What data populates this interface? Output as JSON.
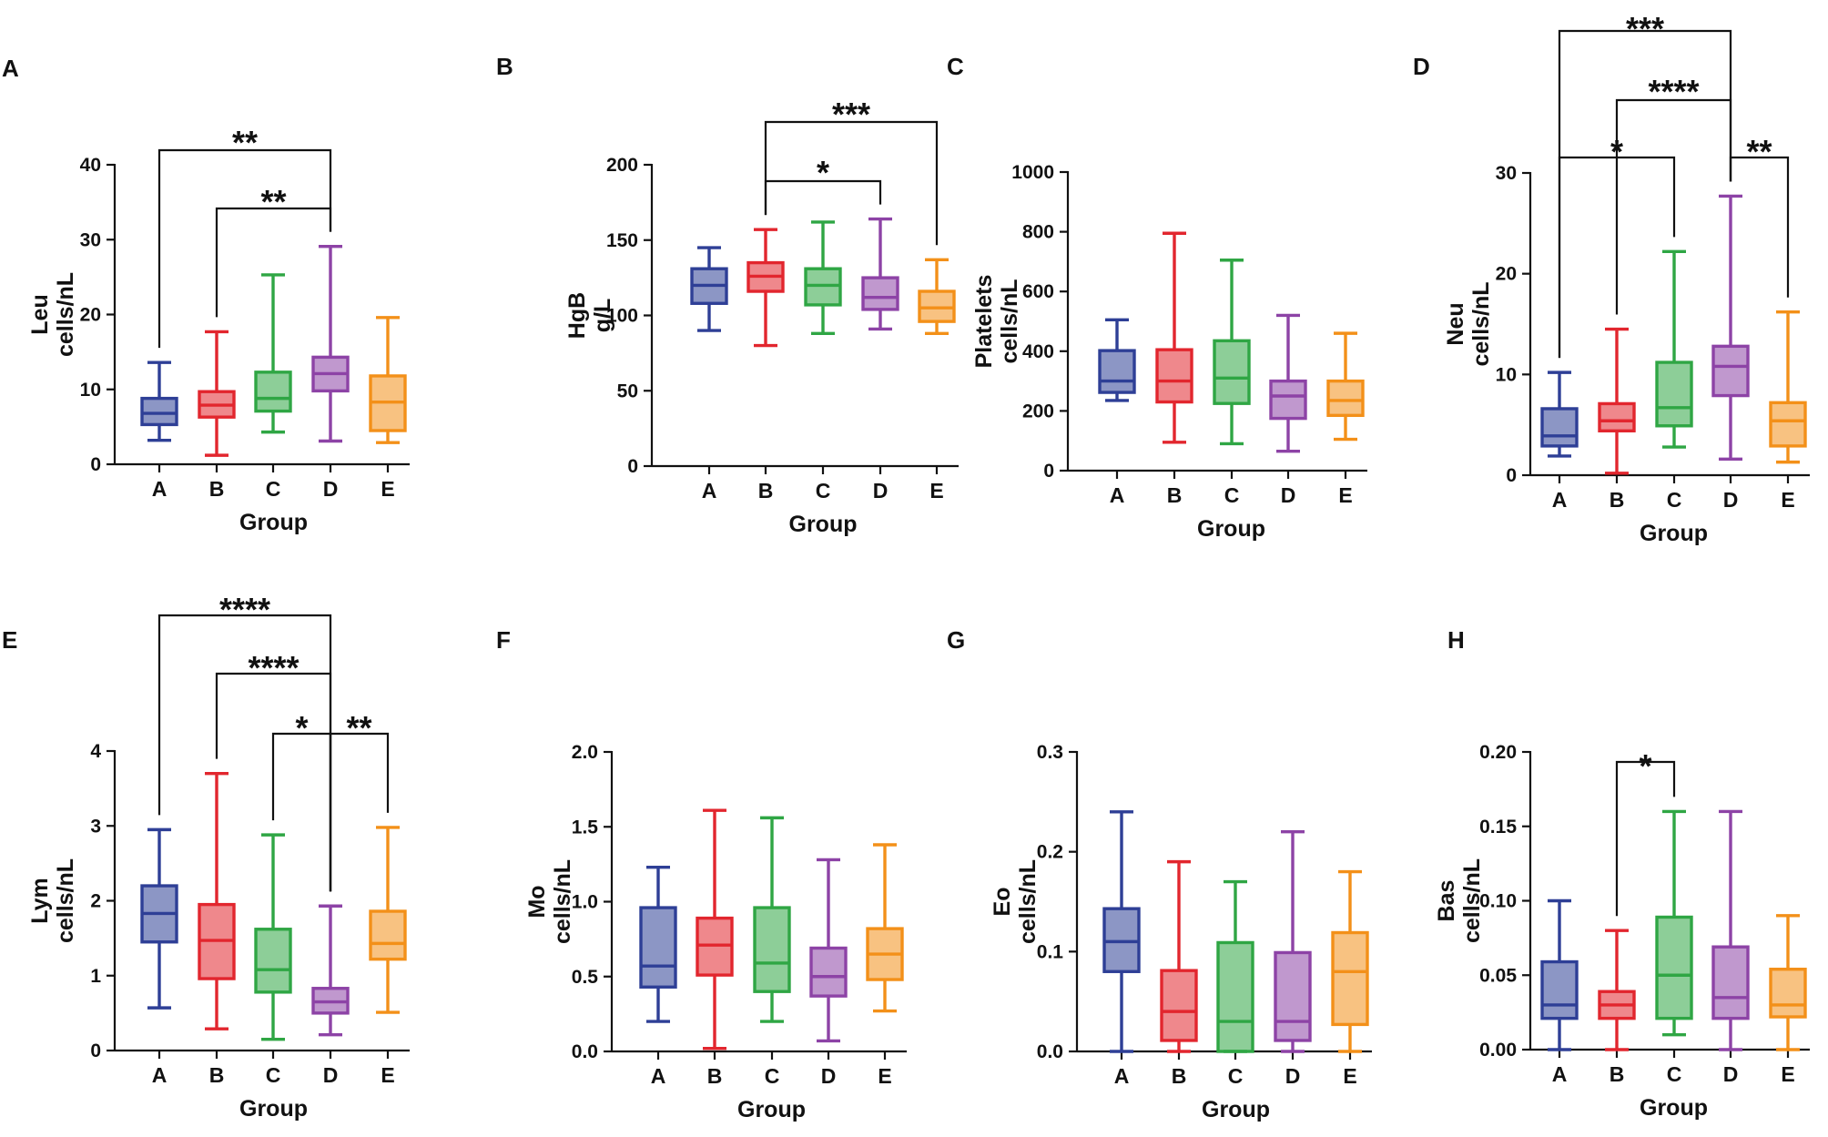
{
  "figure": {
    "group_colors": {
      "A": "#2e3f96",
      "B": "#e2262e",
      "C": "#2fa644",
      "D": "#8d43a6",
      "E": "#f39019"
    }
  },
  "chart_data": [
    {
      "panel": "A",
      "type": "box",
      "ylabel": [
        "Leu",
        "cells/nL"
      ],
      "xlabel": "Group",
      "categories": [
        "A",
        "B",
        "C",
        "D",
        "E"
      ],
      "yticks": [
        0,
        10,
        20,
        30,
        40
      ],
      "ytick_labels": [
        "0",
        "10",
        "20",
        "30",
        "40"
      ],
      "ylim": [
        0,
        40
      ],
      "boxes": [
        {
          "min": 3.2,
          "q1": 5.3,
          "median": 6.8,
          "q3": 8.8,
          "max": 13.6
        },
        {
          "min": 1.2,
          "q1": 6.3,
          "median": 7.9,
          "q3": 9.7,
          "max": 17.7
        },
        {
          "min": 4.3,
          "q1": 7.1,
          "median": 8.8,
          "q3": 12.3,
          "max": 25.3
        },
        {
          "min": 3.1,
          "q1": 9.8,
          "median": 12.1,
          "q3": 14.3,
          "max": 29.1
        },
        {
          "min": 2.9,
          "q1": 4.5,
          "median": 8.3,
          "q3": 11.8,
          "max": 19.6
        }
      ],
      "significance": [
        {
          "from": 0,
          "to": 3,
          "label": "**"
        },
        {
          "from": 1,
          "to": 3,
          "label": "**"
        }
      ]
    },
    {
      "panel": "B",
      "type": "box",
      "ylabel": [
        "HgB",
        "g/L"
      ],
      "xlabel": "Group",
      "categories": [
        "A",
        "B",
        "C",
        "D",
        "E"
      ],
      "yticks": [
        0,
        50,
        100,
        150,
        200
      ],
      "ytick_labels": [
        "0",
        "50",
        "100",
        "150",
        "200"
      ],
      "ylim": [
        0,
        200
      ],
      "boxes": [
        {
          "min": 90,
          "q1": 108,
          "median": 120,
          "q3": 131,
          "max": 145
        },
        {
          "min": 80,
          "q1": 116,
          "median": 126,
          "q3": 135,
          "max": 157
        },
        {
          "min": 88,
          "q1": 107,
          "median": 120,
          "q3": 131,
          "max": 162
        },
        {
          "min": 91,
          "q1": 104,
          "median": 112,
          "q3": 125,
          "max": 164
        },
        {
          "min": 88,
          "q1": 96,
          "median": 105,
          "q3": 116,
          "max": 137
        }
      ],
      "significance": [
        {
          "from": 1,
          "to": 4,
          "label": "***"
        },
        {
          "from": 1,
          "to": 3,
          "label": "*"
        }
      ]
    },
    {
      "panel": "C",
      "type": "box",
      "ylabel": [
        "Platelets",
        "cells/nL"
      ],
      "xlabel": "Group",
      "categories": [
        "A",
        "B",
        "C",
        "D",
        "E"
      ],
      "yticks": [
        0,
        200,
        400,
        600,
        800,
        1000
      ],
      "ytick_labels": [
        "0",
        "200",
        "400",
        "600",
        "800",
        "1000"
      ],
      "ylim": [
        0,
        1000
      ],
      "boxes": [
        {
          "min": 235,
          "q1": 262,
          "median": 300,
          "q3": 402,
          "max": 505
        },
        {
          "min": 95,
          "q1": 230,
          "median": 300,
          "q3": 405,
          "max": 795
        },
        {
          "min": 90,
          "q1": 225,
          "median": 310,
          "q3": 435,
          "max": 705
        },
        {
          "min": 65,
          "q1": 175,
          "median": 250,
          "q3": 300,
          "max": 520
        },
        {
          "min": 105,
          "q1": 185,
          "median": 235,
          "q3": 300,
          "max": 460
        }
      ],
      "significance": []
    },
    {
      "panel": "D",
      "type": "box",
      "ylabel": [
        "Neu",
        "cells/nL"
      ],
      "xlabel": "Group",
      "categories": [
        "A",
        "B",
        "C",
        "D",
        "E"
      ],
      "yticks": [
        0,
        10,
        20,
        30
      ],
      "ytick_labels": [
        "0",
        "10",
        "20",
        "30"
      ],
      "ylim": [
        0,
        30
      ],
      "boxes": [
        {
          "min": 1.9,
          "q1": 2.9,
          "median": 3.9,
          "q3": 6.6,
          "max": 10.2
        },
        {
          "min": 0.2,
          "q1": 4.4,
          "median": 5.4,
          "q3": 7.1,
          "max": 14.5
        },
        {
          "min": 2.8,
          "q1": 4.9,
          "median": 6.7,
          "q3": 11.2,
          "max": 22.2
        },
        {
          "min": 1.6,
          "q1": 7.9,
          "median": 10.8,
          "q3": 12.8,
          "max": 27.7
        },
        {
          "min": 1.3,
          "q1": 2.9,
          "median": 5.4,
          "q3": 7.2,
          "max": 16.2
        }
      ],
      "significance": [
        {
          "from": 0,
          "to": 3,
          "label": "***"
        },
        {
          "from": 1,
          "to": 3,
          "label": "****"
        },
        {
          "from": 0,
          "to": 2,
          "label": "*"
        },
        {
          "from": 3,
          "to": 4,
          "label": "**"
        }
      ]
    },
    {
      "panel": "E",
      "type": "box",
      "ylabel": [
        "Lym",
        "cells/nL"
      ],
      "xlabel": "Group",
      "categories": [
        "A",
        "B",
        "C",
        "D",
        "E"
      ],
      "yticks": [
        0,
        1,
        2,
        3,
        4
      ],
      "ytick_labels": [
        "0",
        "1",
        "2",
        "3",
        "4"
      ],
      "ylim": [
        0,
        4
      ],
      "boxes": [
        {
          "min": 0.57,
          "q1": 1.45,
          "median": 1.83,
          "q3": 2.2,
          "max": 2.95
        },
        {
          "min": 0.29,
          "q1": 0.96,
          "median": 1.47,
          "q3": 1.95,
          "max": 3.7
        },
        {
          "min": 0.15,
          "q1": 0.78,
          "median": 1.08,
          "q3": 1.62,
          "max": 2.88
        },
        {
          "min": 0.21,
          "q1": 0.5,
          "median": 0.65,
          "q3": 0.83,
          "max": 1.93
        },
        {
          "min": 0.51,
          "q1": 1.22,
          "median": 1.43,
          "q3": 1.86,
          "max": 2.98
        }
      ],
      "significance": [
        {
          "from": 0,
          "to": 3,
          "label": "****"
        },
        {
          "from": 1,
          "to": 3,
          "label": "****"
        },
        {
          "from": 2,
          "to": 3,
          "label": "*"
        },
        {
          "from": 3,
          "to": 4,
          "label": "**"
        }
      ]
    },
    {
      "panel": "F",
      "type": "box",
      "ylabel": [
        "Mo",
        "cells/nL"
      ],
      "xlabel": "Group",
      "categories": [
        "A",
        "B",
        "C",
        "D",
        "E"
      ],
      "yticks": [
        0,
        0.5,
        1,
        1.5,
        2
      ],
      "ytick_labels": [
        "0.0",
        "0.5",
        "1.0",
        "1.5",
        "2.0"
      ],
      "ylim": [
        0,
        2
      ],
      "boxes": [
        {
          "min": 0.2,
          "q1": 0.43,
          "median": 0.57,
          "q3": 0.96,
          "max": 1.23
        },
        {
          "min": 0.02,
          "q1": 0.51,
          "median": 0.71,
          "q3": 0.89,
          "max": 1.61
        },
        {
          "min": 0.2,
          "q1": 0.4,
          "median": 0.59,
          "q3": 0.96,
          "max": 1.56
        },
        {
          "min": 0.07,
          "q1": 0.37,
          "median": 0.5,
          "q3": 0.69,
          "max": 1.28
        },
        {
          "min": 0.27,
          "q1": 0.48,
          "median": 0.65,
          "q3": 0.82,
          "max": 1.38
        }
      ],
      "significance": []
    },
    {
      "panel": "G",
      "type": "box",
      "ylabel": [
        "Eo",
        "cells/nL"
      ],
      "xlabel": "Group",
      "categories": [
        "A",
        "B",
        "C",
        "D",
        "E"
      ],
      "yticks": [
        0,
        0.1,
        0.2,
        0.3
      ],
      "ytick_labels": [
        "0.0",
        "0.1",
        "0.2",
        "0.3"
      ],
      "ylim": [
        0,
        0.3
      ],
      "boxes": [
        {
          "min": 0.0,
          "q1": 0.08,
          "median": 0.11,
          "q3": 0.143,
          "max": 0.24
        },
        {
          "min": 0.0,
          "q1": 0.011,
          "median": 0.04,
          "q3": 0.081,
          "max": 0.19
        },
        {
          "min": 0.0,
          "q1": 0.0,
          "median": 0.03,
          "q3": 0.109,
          "max": 0.17
        },
        {
          "min": 0.0,
          "q1": 0.011,
          "median": 0.03,
          "q3": 0.099,
          "max": 0.22
        },
        {
          "min": 0.0,
          "q1": 0.027,
          "median": 0.08,
          "q3": 0.119,
          "max": 0.18
        }
      ],
      "significance": []
    },
    {
      "panel": "H",
      "type": "box",
      "ylabel": [
        "Bas",
        "cells/nL"
      ],
      "xlabel": "Group",
      "categories": [
        "A",
        "B",
        "C",
        "D",
        "E"
      ],
      "yticks": [
        0,
        0.05,
        0.1,
        0.15,
        0.2
      ],
      "ytick_labels": [
        "0.00",
        "0.05",
        "0.10",
        "0.15",
        "0.20"
      ],
      "ylim": [
        0,
        0.2
      ],
      "boxes": [
        {
          "min": 0.0,
          "q1": 0.021,
          "median": 0.03,
          "q3": 0.059,
          "max": 0.1
        },
        {
          "min": 0.0,
          "q1": 0.021,
          "median": 0.03,
          "q3": 0.039,
          "max": 0.08
        },
        {
          "min": 0.01,
          "q1": 0.021,
          "median": 0.05,
          "q3": 0.089,
          "max": 0.16
        },
        {
          "min": 0.0,
          "q1": 0.021,
          "median": 0.035,
          "q3": 0.069,
          "max": 0.16
        },
        {
          "min": 0.0,
          "q1": 0.022,
          "median": 0.03,
          "q3": 0.054,
          "max": 0.09
        }
      ],
      "significance": [
        {
          "from": 1,
          "to": 2,
          "label": "*"
        }
      ]
    }
  ]
}
